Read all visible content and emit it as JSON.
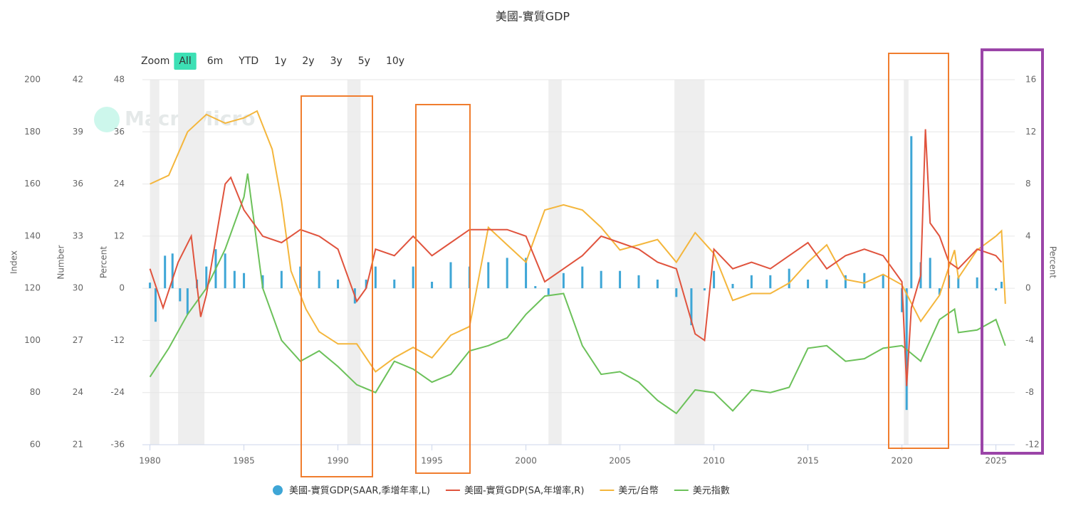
{
  "chart_data": {
    "type": "line",
    "title": "美國-實質GDP",
    "watermark": "MacroMicro",
    "zoom_label": "Zoom",
    "zoom_buttons": [
      "All",
      "6m",
      "YTD",
      "1y",
      "2y",
      "3y",
      "5y",
      "10y"
    ],
    "zoom_selected": 0,
    "xlim": [
      1979.6,
      2026
    ],
    "xticks": [
      1980,
      1985,
      1990,
      1995,
      2000,
      2005,
      2010,
      2015,
      2020,
      2025
    ],
    "ylabel": "Percent",
    "ylim": [
      -36,
      48
    ],
    "yticks": [
      -36,
      -24,
      -12,
      0,
      12,
      24,
      36,
      48
    ],
    "y2label": "Percent",
    "y2lim": [
      -12,
      16
    ],
    "y2ticks": [
      -12,
      -8,
      -4,
      0,
      4,
      8,
      12,
      16
    ],
    "y3label": "Number",
    "y3lim": [
      21,
      42
    ],
    "y3ticks": [
      21,
      24,
      27,
      30,
      33,
      36,
      39,
      42
    ],
    "y4label": "Index",
    "y4lim": [
      60,
      200
    ],
    "y4ticks": [
      60,
      80,
      100,
      120,
      140,
      160,
      180,
      200
    ],
    "grid": true,
    "recessions": [
      [
        1980.0,
        1980.5
      ],
      [
        1981.5,
        1982.9
      ],
      [
        1990.5,
        1991.2
      ],
      [
        2001.2,
        2001.9
      ],
      [
        2007.9,
        2009.5
      ],
      [
        2020.1,
        2020.35
      ]
    ],
    "series": [
      {
        "name": "美國-實質GDP(SAAR,季增年率,L)",
        "type": "bar",
        "axis": "y",
        "color": "#3ea6d6",
        "x": [
          1980.0,
          1980.3,
          1980.8,
          1981.2,
          1981.6,
          1982.0,
          1982.5,
          1983.0,
          1983.5,
          1984.0,
          1984.5,
          1985,
          1986,
          1987,
          1988,
          1989,
          1990,
          1990.9,
          1991.5,
          1992,
          1993,
          1994,
          1995,
          1996,
          1997,
          1998,
          1999,
          2000,
          2000.5,
          2001.2,
          2002,
          2003,
          2004,
          2005,
          2006,
          2007,
          2008,
          2008.8,
          2009.5,
          2010,
          2011,
          2012,
          2013,
          2014,
          2015,
          2016,
          2017,
          2018,
          2019,
          2020.0,
          2020.25,
          2020.5,
          2021,
          2021.5,
          2022,
          2022.5,
          2023,
          2024,
          2025,
          2025.3
        ],
        "values": [
          1.3,
          -7.7,
          7.5,
          8,
          -3,
          -6,
          2,
          5,
          9,
          8,
          4,
          3.5,
          3,
          4,
          5,
          4,
          2,
          -3.5,
          2,
          5,
          2,
          5,
          1.5,
          6,
          5,
          6,
          7,
          7,
          0.5,
          -1.5,
          3.5,
          5,
          4,
          4,
          3,
          2,
          -2,
          -8.5,
          -0.5,
          4,
          1,
          3,
          3,
          4.5,
          2,
          2,
          3,
          3.5,
          3,
          -5.5,
          -28,
          35,
          6,
          7,
          -1.5,
          3,
          2.5,
          2.5,
          -0.5,
          1.5
        ]
      },
      {
        "name": "美國-實質GDP(SA,年增率,R)",
        "type": "line",
        "axis": "y2",
        "color": "#e0533d",
        "x": [
          1980,
          1980.7,
          1981.5,
          1982.2,
          1982.7,
          1983,
          1984,
          1984.3,
          1985,
          1986,
          1987,
          1988,
          1989,
          1990,
          1991,
          1991.5,
          1992,
          1993,
          1994,
          1995,
          1996,
          1997,
          1998,
          1999,
          2000,
          2001,
          2002,
          2003,
          2004,
          2005,
          2006,
          2007,
          2008,
          2009,
          2009.5,
          2010,
          2011,
          2012,
          2013,
          2014,
          2015,
          2016,
          2017,
          2018,
          2019,
          2020,
          2020.25,
          2020.5,
          2021,
          2021.25,
          2021.5,
          2022,
          2022.5,
          2023,
          2024,
          2025,
          2025.3
        ],
        "values": [
          1.5,
          -1.5,
          2,
          4,
          -2.2,
          -0.5,
          8,
          8.5,
          6,
          4,
          3.5,
          4.5,
          4,
          3,
          -1,
          0,
          3,
          2.5,
          4,
          2.5,
          3.5,
          4.5,
          4.5,
          4.5,
          4,
          0.5,
          1.5,
          2.5,
          4,
          3.5,
          3,
          2,
          1.5,
          -3.5,
          -4,
          3,
          1.5,
          2,
          1.5,
          2.5,
          3.5,
          1.5,
          2.5,
          3,
          2.5,
          0.5,
          -7.5,
          -1.5,
          1,
          12.2,
          5,
          4,
          2,
          1.5,
          3,
          2.5,
          2
        ]
      },
      {
        "name": "美元/台幣",
        "type": "line",
        "axis": "y3",
        "color": "#f4b63c",
        "x": [
          1980,
          1981,
          1982,
          1983,
          1984,
          1985,
          1985.7,
          1986.5,
          1987,
          1987.5,
          1988.3,
          1989,
          1990,
          1991,
          1992,
          1993,
          1994,
          1995,
          1996,
          1997,
          1998,
          1999,
          2000,
          2001,
          2002,
          2003,
          2004,
          2005,
          2006,
          2007,
          2008,
          2009,
          2010,
          2011,
          2012,
          2013,
          2014,
          2015,
          2016,
          2017,
          2018,
          2019,
          2020,
          2021,
          2022,
          2022.8,
          2023,
          2024,
          2025,
          2025.3,
          2025.5
        ],
        "values": [
          36,
          36.5,
          39,
          40,
          39.5,
          39.8,
          40.2,
          38,
          35,
          31,
          28.8,
          27.5,
          26.8,
          26.8,
          25.2,
          26,
          26.6,
          26,
          27.3,
          27.8,
          33.5,
          32.5,
          31.5,
          34.5,
          34.8,
          34.5,
          33.5,
          32.2,
          32.5,
          32.8,
          31.5,
          33.2,
          32,
          29.3,
          29.7,
          29.7,
          30.3,
          31.5,
          32.5,
          30.5,
          30.3,
          30.8,
          30.2,
          28.1,
          29.6,
          32.2,
          30.6,
          32.2,
          33,
          33.3,
          29.1
        ]
      },
      {
        "name": "美元指數",
        "type": "line",
        "axis": "y4",
        "color": "#6cc15a",
        "x": [
          1980,
          1981,
          1982,
          1983,
          1984,
          1985,
          1985.2,
          1986,
          1987,
          1988,
          1989,
          1990,
          1991,
          1992,
          1993,
          1994,
          1995,
          1996,
          1997,
          1998,
          1999,
          2000,
          2001,
          2002,
          2003,
          2004,
          2005,
          2006,
          2007,
          2008,
          2009,
          2010,
          2011,
          2012,
          2013,
          2014,
          2015,
          2016,
          2017,
          2018,
          2019,
          2020,
          2021,
          2022,
          2022.8,
          2023,
          2024,
          2025,
          2025.5
        ],
        "values": [
          86,
          97,
          110,
          120,
          135,
          155,
          164,
          120,
          100,
          92,
          96,
          90,
          83,
          80,
          92,
          89,
          84,
          87,
          96,
          98,
          101,
          110,
          117,
          118,
          98,
          87,
          88,
          84,
          77,
          72,
          81,
          80,
          73,
          81,
          80,
          82,
          97,
          98,
          92,
          93,
          97,
          98,
          92,
          108,
          112,
          103,
          104,
          108,
          98
        ]
      }
    ]
  }
}
